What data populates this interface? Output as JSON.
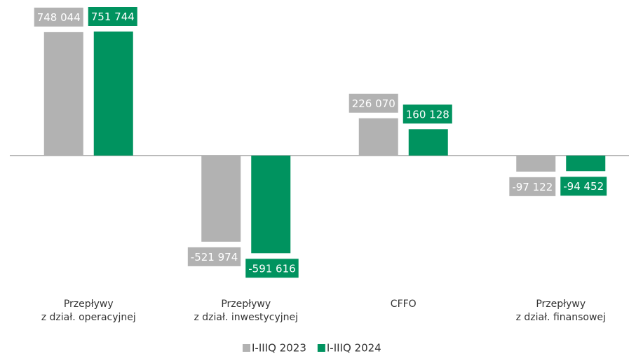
{
  "chart_data": {
    "type": "bar",
    "categories": [
      [
        "Przepływy",
        "z dział. operacyjnej"
      ],
      [
        "Przepływy",
        "z dział. inwestycyjnej"
      ],
      [
        "CFFO"
      ],
      [
        "Przepływy",
        "z dział. finansowej"
      ]
    ],
    "series": [
      {
        "name": "I-IIIQ 2023",
        "color": "#b2b2b2",
        "values": [
          748044,
          -521974,
          226070,
          -97122
        ],
        "value_labels": [
          "748 044",
          "-521 974",
          "226 070",
          "-97 122"
        ]
      },
      {
        "name": "I-IIIQ 2024",
        "color": "#00935f",
        "values": [
          751744,
          -591616,
          160128,
          -94452
        ],
        "value_labels": [
          "751 744",
          "-591 616",
          "160 128",
          "-94 452"
        ]
      }
    ]
  }
}
